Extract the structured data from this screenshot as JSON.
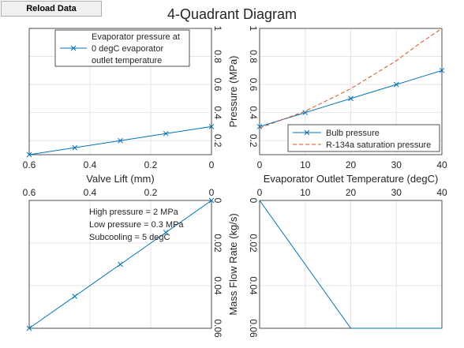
{
  "toolbar": {
    "reload_label": "Reload Data"
  },
  "figure": {
    "title": "4-Quadrant Diagram"
  },
  "colors": {
    "blue": "#0072bd",
    "orange": "#d95319",
    "grid": "#e6e6e6",
    "axis": "#262626"
  },
  "chart_data": [
    {
      "id": "top-left",
      "type": "line",
      "xlabel": "Valve Lift (mm)",
      "ylabel": "",
      "xlim": [
        0.6,
        0
      ],
      "ylim": [
        0.1,
        1
      ],
      "xticks": [
        "0.6",
        "0.4",
        "0.2",
        "0"
      ],
      "xtick_values": [
        0.6,
        0.4,
        0.2,
        0
      ],
      "yticks": [
        "0.2",
        "0.4",
        "0.6",
        "0.8",
        "1"
      ],
      "ytick_values": [
        0.2,
        0.4,
        0.6,
        0.8,
        1
      ],
      "legend": {
        "location": "top-right"
      },
      "series": [
        {
          "name": "Evaporator pressure at 0 degC evaporator outlet temperature",
          "legend_lines": [
            "Evaporator pressure at",
            "0 degC evaporator",
            "outlet temperature"
          ],
          "style": "solid-x",
          "x": [
            0.6,
            0.45,
            0.3,
            0.15,
            0
          ],
          "y": [
            0.1,
            0.15,
            0.2,
            0.25,
            0.3
          ]
        }
      ]
    },
    {
      "id": "top-right",
      "type": "line",
      "xlabel": "Evaporator Outlet Temperature (degC)",
      "ylabel": "Pressure (MPa)",
      "xlim": [
        0,
        40
      ],
      "ylim": [
        0.1,
        1
      ],
      "xticks": [
        "0",
        "10",
        "20",
        "30",
        "40"
      ],
      "xtick_values": [
        0,
        10,
        20,
        30,
        40
      ],
      "yticks": [
        "0.2",
        "0.4",
        "0.6",
        "0.8",
        "1"
      ],
      "ytick_values": [
        0.2,
        0.4,
        0.6,
        0.8,
        1
      ],
      "legend": {
        "location": "bottom-right"
      },
      "series": [
        {
          "name": "Bulb pressure",
          "legend_lines": [
            "Bulb pressure"
          ],
          "style": "solid-x",
          "x": [
            0,
            10,
            20,
            30,
            40
          ],
          "y": [
            0.3,
            0.4,
            0.5,
            0.6,
            0.7
          ]
        },
        {
          "name": "R-134a saturation pressure",
          "legend_lines": [
            "R-134a saturation pressure"
          ],
          "style": "dashed",
          "x": [
            0,
            5,
            10,
            15,
            20,
            25,
            30,
            35,
            40
          ],
          "y": [
            0.29,
            0.35,
            0.41,
            0.49,
            0.57,
            0.67,
            0.77,
            0.89,
            1.0
          ]
        }
      ]
    },
    {
      "id": "bottom-left",
      "type": "line",
      "xlabel": "",
      "ylabel": "",
      "xlim": [
        0.6,
        0
      ],
      "ylim": [
        0.06,
        0
      ],
      "xticks": [
        "0.6",
        "0.4",
        "0.2",
        "0"
      ],
      "xtick_values": [
        0.6,
        0.4,
        0.2,
        0
      ],
      "yticks": [
        "0",
        "0.02",
        "0.04",
        "0.06"
      ],
      "ytick_values": [
        0,
        0.02,
        0.04,
        0.06
      ],
      "annotations": [
        "High pressure = 2 MPa",
        "Low pressure = 0.3 MPa",
        "Subcooling = 5 degC"
      ],
      "series": [
        {
          "style": "solid-x",
          "x": [
            0.6,
            0.45,
            0.3,
            0.15,
            0
          ],
          "y": [
            0.06,
            0.045,
            0.03,
            0.015,
            0
          ]
        }
      ]
    },
    {
      "id": "bottom-right",
      "type": "line",
      "xlabel": "",
      "ylabel": "Mass Flow Rate (kg/s)",
      "xlim": [
        0,
        40
      ],
      "ylim": [
        0.06,
        0
      ],
      "xticks": [
        "0",
        "10",
        "20",
        "30",
        "40"
      ],
      "xtick_values": [
        0,
        10,
        20,
        30,
        40
      ],
      "yticks": [
        "0",
        "0.02",
        "0.04",
        "0.06"
      ],
      "ytick_values": [
        0,
        0.02,
        0.04,
        0.06
      ],
      "series": [
        {
          "style": "solid",
          "x": [
            0,
            20,
            40
          ],
          "y": [
            0,
            0.06,
            0.06
          ]
        }
      ]
    }
  ]
}
